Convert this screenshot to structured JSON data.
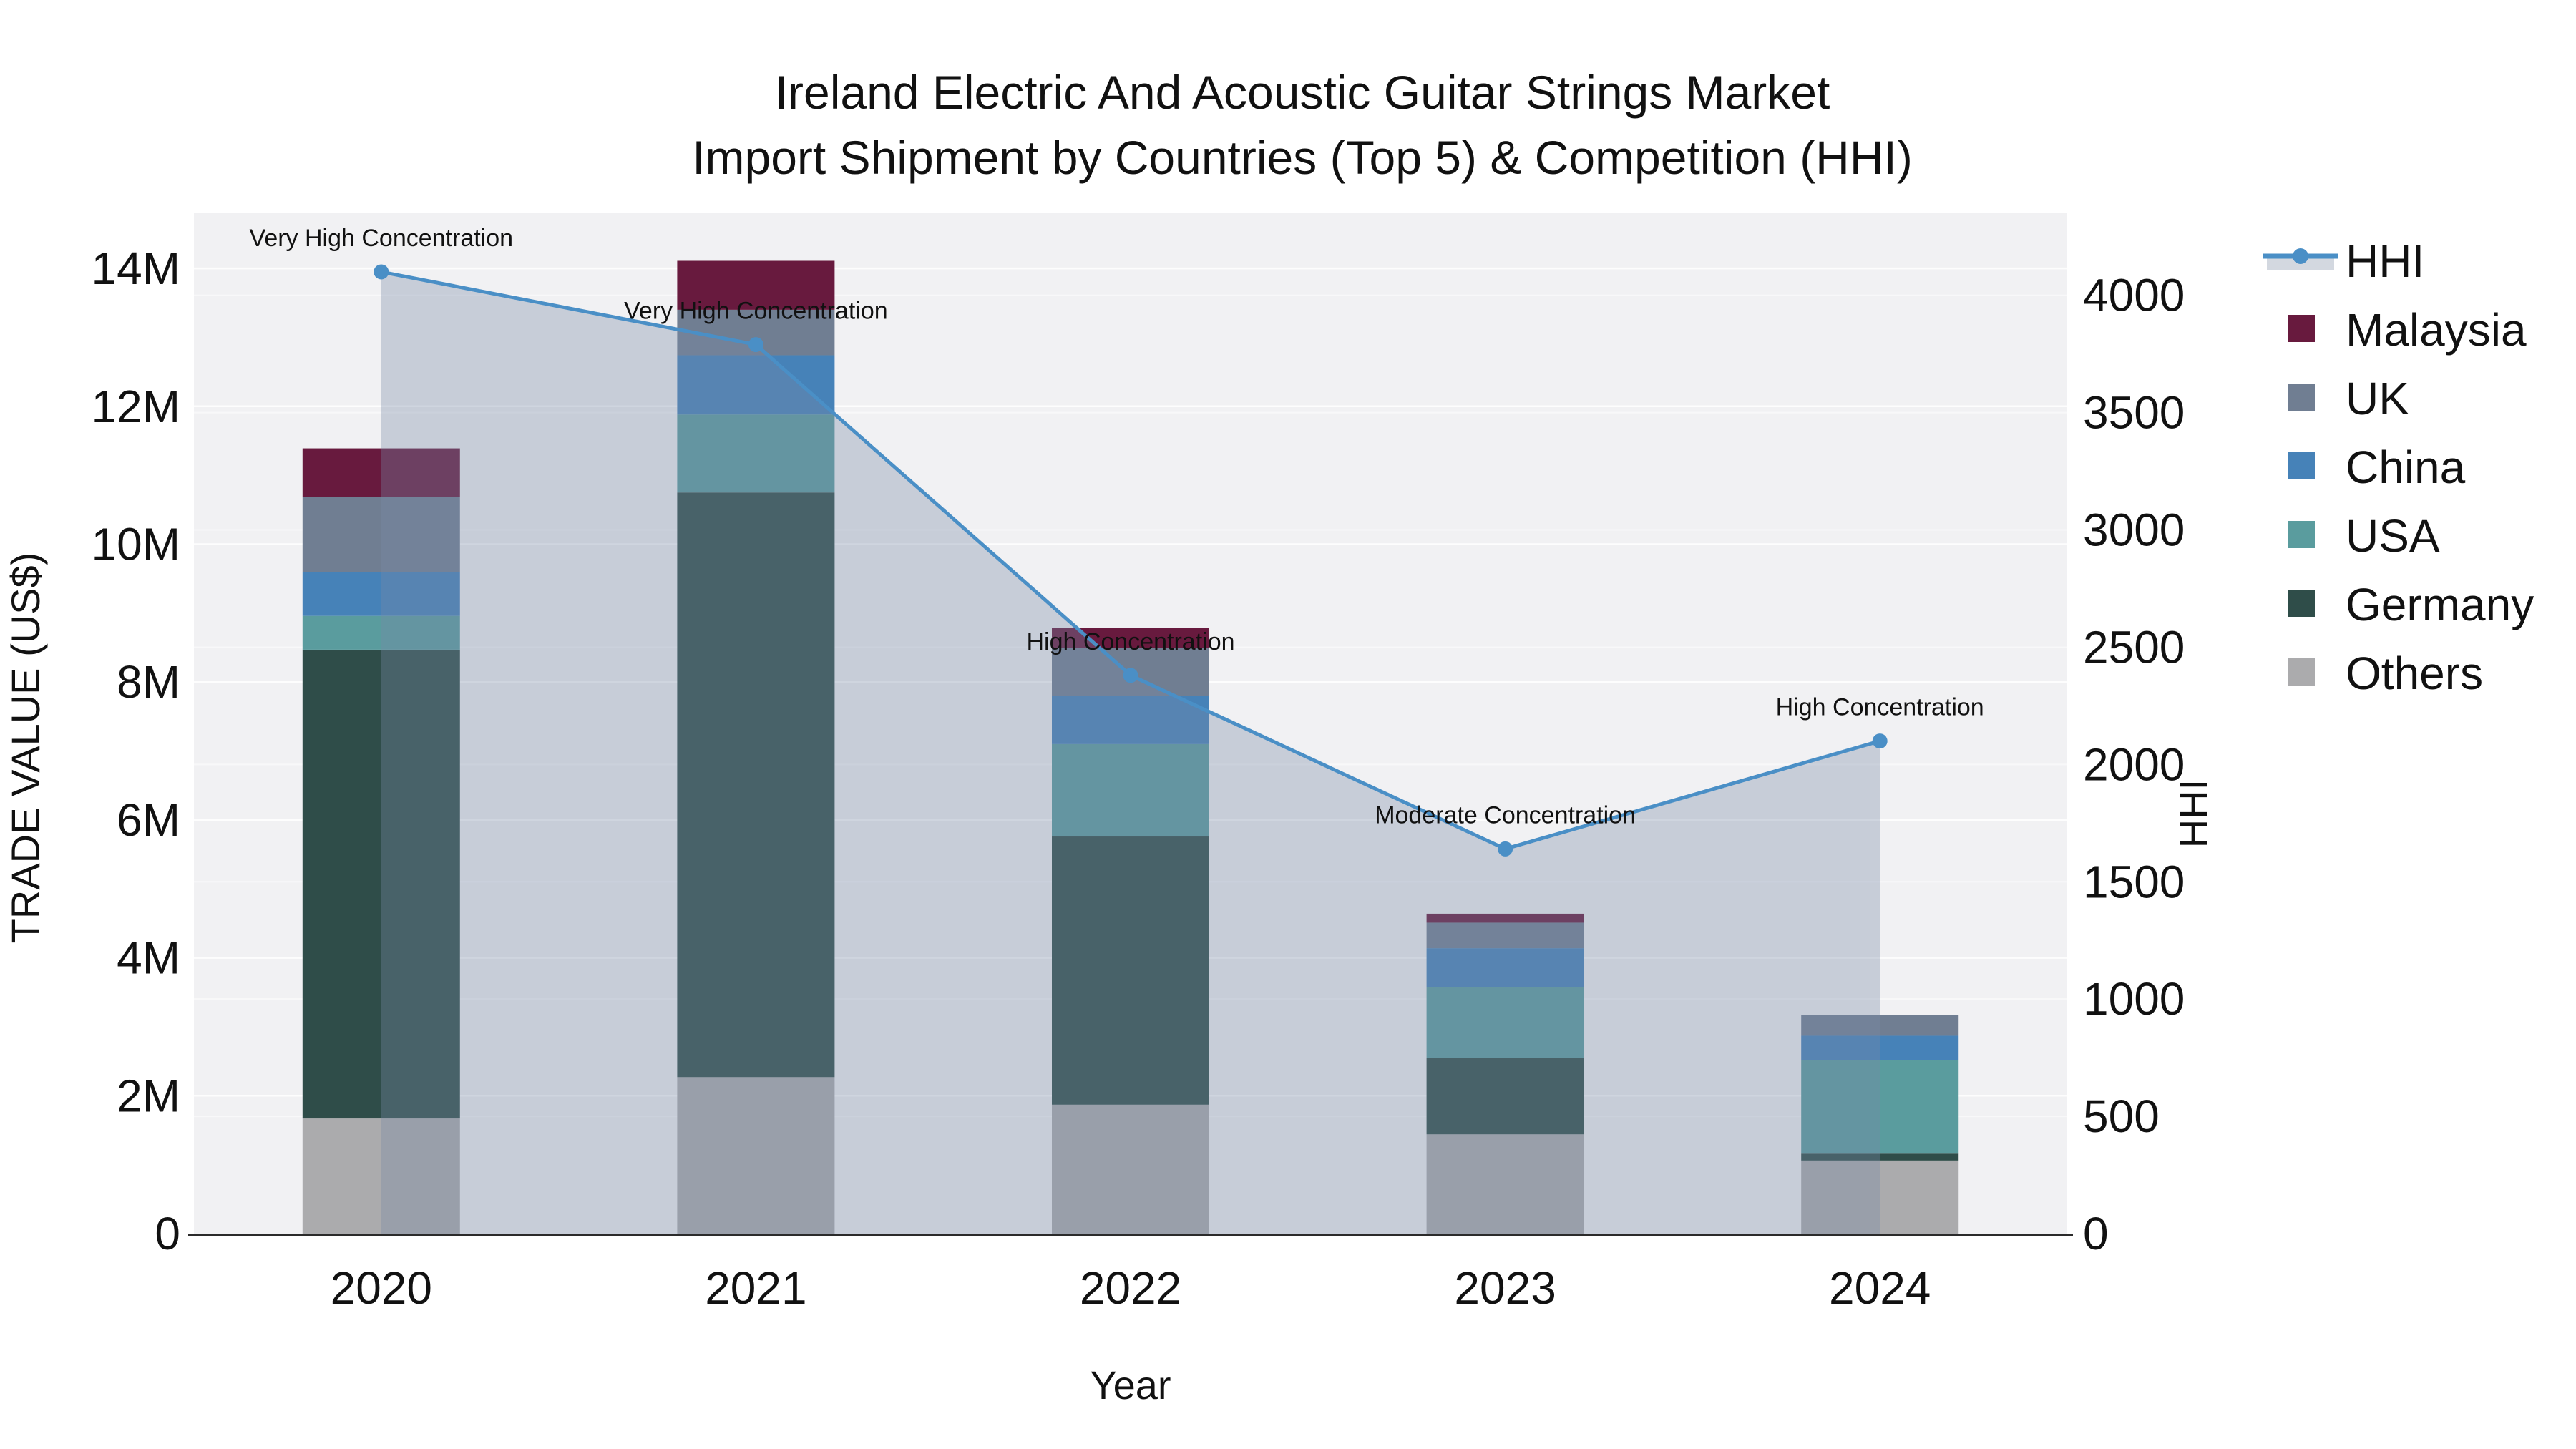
{
  "title": {
    "line1": "Ireland Electric And Acoustic Guitar Strings Market",
    "line2": "Import Shipment by Countries (Top 5) & Competition (HHI)"
  },
  "colors": {
    "plot_bg": "#F1F1F3",
    "grid": "#FFFFFF",
    "spine": "#2B2B2B",
    "text": "#111111",
    "hhi_line": "#4A8FC6",
    "hhi_fill": "#7789A5",
    "legend_band": "#D3D8E0"
  },
  "legend": {
    "items": [
      {
        "label": "HHI",
        "kind": "line",
        "color": "#4A8FC6",
        "band_color": "#D3D8E0"
      },
      {
        "label": "Malaysia",
        "kind": "swatch",
        "color": "#681A3E"
      },
      {
        "label": "UK",
        "kind": "swatch",
        "color": "#707E92"
      },
      {
        "label": "China",
        "kind": "swatch",
        "color": "#4682B8"
      },
      {
        "label": "USA",
        "kind": "swatch",
        "color": "#5A9C9E"
      },
      {
        "label": "Germany",
        "kind": "swatch",
        "color": "#2F4D49"
      },
      {
        "label": "Others",
        "kind": "swatch",
        "color": "#ABABAD"
      }
    ]
  },
  "chart_data": [
    {
      "type": "bar",
      "stacked": true,
      "categories": [
        "2020",
        "2021",
        "2022",
        "2023",
        "2024"
      ],
      "xlabel": "Year",
      "ylabel": "TRADE VALUE (US$)",
      "unit": "millions US$",
      "ylim": [
        0,
        14.8
      ],
      "yticks": [
        {
          "value": 0,
          "label": "0"
        },
        {
          "value": 2,
          "label": "2M"
        },
        {
          "value": 4,
          "label": "4M"
        },
        {
          "value": 6,
          "label": "6M"
        },
        {
          "value": 8,
          "label": "8M"
        },
        {
          "value": 10,
          "label": "10M"
        },
        {
          "value": 12,
          "label": "12M"
        },
        {
          "value": 14,
          "label": "14M"
        }
      ],
      "series": [
        {
          "name": "Others",
          "color": "#ABABAD",
          "values": [
            1.67,
            2.27,
            1.87,
            1.44,
            1.06
          ]
        },
        {
          "name": "Germany",
          "color": "#2F4D49",
          "values": [
            6.8,
            8.48,
            3.89,
            1.11,
            0.1
          ]
        },
        {
          "name": "USA",
          "color": "#5A9C9E",
          "values": [
            0.49,
            1.13,
            1.34,
            1.03,
            1.36
          ]
        },
        {
          "name": "China",
          "color": "#4682B8",
          "values": [
            0.64,
            0.86,
            0.7,
            0.56,
            0.35
          ]
        },
        {
          "name": "UK",
          "color": "#707E92",
          "values": [
            1.08,
            0.66,
            0.69,
            0.37,
            0.3
          ]
        },
        {
          "name": "Malaysia",
          "color": "#681A3E",
          "values": [
            0.71,
            0.71,
            0.3,
            0.13,
            0.0
          ]
        }
      ],
      "totals": [
        11.39,
        14.11,
        8.79,
        4.64,
        3.17
      ],
      "legend_order_top_to_bottom": [
        "Malaysia",
        "UK",
        "China",
        "USA",
        "Germany",
        "Others"
      ]
    },
    {
      "type": "line",
      "name": "HHI",
      "x": [
        "2020",
        "2021",
        "2022",
        "2023",
        "2024"
      ],
      "values": [
        4100,
        3790,
        2380,
        1640,
        2100
      ],
      "fill": "tozeroy",
      "fill_color": "#7789A5",
      "fill_opacity": 0.35,
      "color": "#4A8FC6",
      "marker": "circle",
      "ylabel": "HHI",
      "ylim": [
        0,
        4350
      ],
      "yticks": [
        0,
        500,
        1000,
        1500,
        2000,
        2500,
        3000,
        3500,
        4000
      ],
      "annotations": [
        "Very High Concentration",
        "Very High Concentration",
        "High Concentration",
        "Moderate Concentration",
        "High Concentration"
      ]
    }
  ]
}
